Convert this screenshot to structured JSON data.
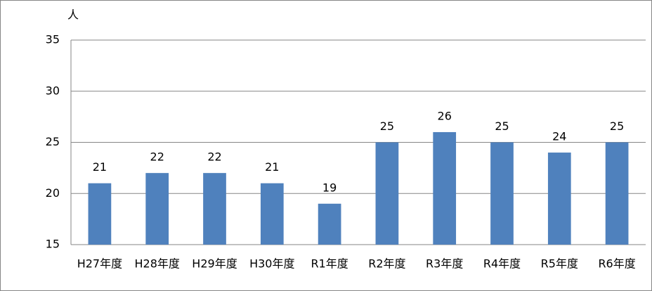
{
  "chart_data": {
    "type": "bar",
    "ylabel": "人",
    "categories": [
      "H27年度",
      "H28年度",
      "H29年度",
      "H30年度",
      "R1年度",
      "R2年度",
      "R3年度",
      "R4年度",
      "R5年度",
      "R6年度"
    ],
    "values": [
      21,
      22,
      22,
      21,
      19,
      25,
      26,
      25,
      24,
      25
    ],
    "color": "#4f81bd",
    "ylim": [
      15,
      35
    ],
    "yticks": [
      15,
      20,
      25,
      30,
      35
    ],
    "grid": true,
    "data_labels": true
  }
}
